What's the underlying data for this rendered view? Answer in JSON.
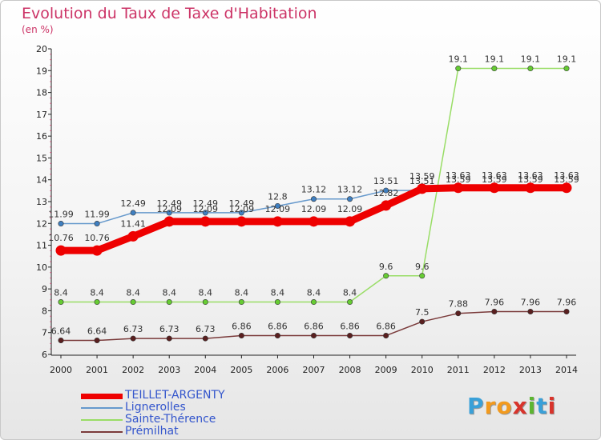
{
  "title": "Evolution du Taux de Taxe d'Habitation",
  "unit_label": "(en %)",
  "logo": {
    "text": "Proxiti",
    "letter_colors": [
      "#3aa0d8",
      "#f29a1e",
      "#f29a1e",
      "#d8342c",
      "#5cb531",
      "#3aa0d8",
      "#d8342c"
    ]
  },
  "chart_data": {
    "type": "line",
    "x": [
      2000,
      2001,
      2002,
      2003,
      2004,
      2005,
      2006,
      2007,
      2008,
      2009,
      2010,
      2011,
      2012,
      2013,
      2014
    ],
    "ylim": [
      6,
      20
    ],
    "yticks": [
      6,
      7,
      8,
      9,
      10,
      11,
      12,
      13,
      14,
      15,
      16,
      17,
      18,
      19,
      20
    ],
    "grid": false,
    "legend_position": "bottom-left",
    "series": [
      {
        "name": "TEILLET-ARGENTY",
        "color": "#ee0000",
        "marker_color": "#ee0000",
        "emphasis": true,
        "values": [
          10.76,
          10.76,
          11.41,
          12.09,
          12.09,
          12.09,
          12.09,
          12.09,
          12.09,
          12.82,
          13.59,
          13.63,
          13.63,
          13.63,
          13.63
        ],
        "labels": [
          "10.76",
          "10.76",
          "11.41",
          "12.09",
          "12.09",
          "12.09",
          "12.09",
          "12.09",
          "12.09",
          "12.82",
          "13.59",
          "13.63",
          "13.63",
          "13.63",
          "13.63"
        ]
      },
      {
        "name": "Lignerolles",
        "color": "#6699cc",
        "marker_color": "#3f7fc0",
        "values": [
          11.99,
          11.99,
          12.49,
          12.49,
          12.49,
          12.49,
          12.8,
          13.12,
          13.12,
          13.51,
          13.51,
          13.59,
          13.59,
          13.59,
          13.59
        ],
        "labels": [
          "11.99",
          "11.99",
          "12.49",
          "12.49",
          "12.49",
          "12.49",
          "12.8",
          "13.12",
          "13.12",
          "13.51",
          "13.51",
          "13.59",
          "13.59",
          "13.59",
          "13.59"
        ]
      },
      {
        "name": "Sainte-Thérence",
        "color": "#99dd66",
        "marker_color": "#66cc33",
        "values": [
          8.4,
          8.4,
          8.4,
          8.4,
          8.4,
          8.4,
          8.4,
          8.4,
          8.4,
          9.6,
          9.6,
          19.1,
          19.1,
          19.1,
          19.1
        ],
        "labels": [
          "8.4",
          "8.4",
          "8.4",
          "8.4",
          "8.4",
          "8.4",
          "8.4",
          "8.4",
          "8.4",
          "9.6",
          "9.6",
          "19.1",
          "19.1",
          "19.1",
          "19.1"
        ]
      },
      {
        "name": "Prémilhat",
        "color": "#7a3a3a",
        "marker_color": "#5a1f1f",
        "values": [
          6.64,
          6.64,
          6.73,
          6.73,
          6.73,
          6.86,
          6.86,
          6.86,
          6.86,
          6.86,
          7.5,
          7.88,
          7.96,
          7.96,
          7.96
        ],
        "labels": [
          "6.64",
          "6.64",
          "6.73",
          "6.73",
          "6.73",
          "6.86",
          "6.86",
          "6.86",
          "6.86",
          "6.86",
          "7.5",
          "7.88",
          "7.96",
          "7.96",
          "7.96"
        ]
      }
    ]
  }
}
